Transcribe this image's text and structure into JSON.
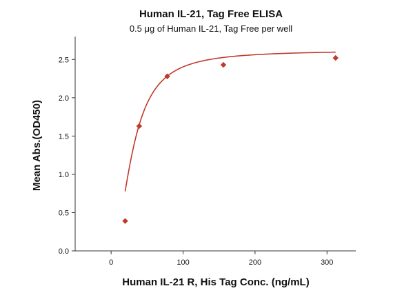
{
  "chart_data": {
    "type": "scatter",
    "title": "Human IL-21, Tag Free ELISA",
    "subtitle": "0.5 μg of Human IL-21, Tag Free per well",
    "xlabel": "Human IL-21 R, His Tag Conc. (ng/mL)",
    "ylabel": "Mean Abs.(OD450)",
    "xlim": [
      -50,
      340
    ],
    "ylim": [
      0,
      2.8
    ],
    "xticks": [
      0,
      100,
      200,
      300
    ],
    "yticks": [
      0.0,
      0.5,
      1.0,
      1.5,
      2.0,
      2.5
    ],
    "xtick_labels": [
      "0",
      "100",
      "200",
      "300"
    ],
    "ytick_labels": [
      "0.0",
      "0.5",
      "1.0",
      "1.5",
      "2.0",
      "2.5"
    ],
    "grid": false,
    "series": [
      {
        "marker": "diamond",
        "color": "#c0392b",
        "x": [
          19.5,
          39,
          78,
          156,
          312
        ],
        "y": [
          0.39,
          1.63,
          2.28,
          2.43,
          2.52
        ]
      }
    ],
    "fit_curve": {
      "color": "#c0392b",
      "type": "4PL"
    }
  }
}
